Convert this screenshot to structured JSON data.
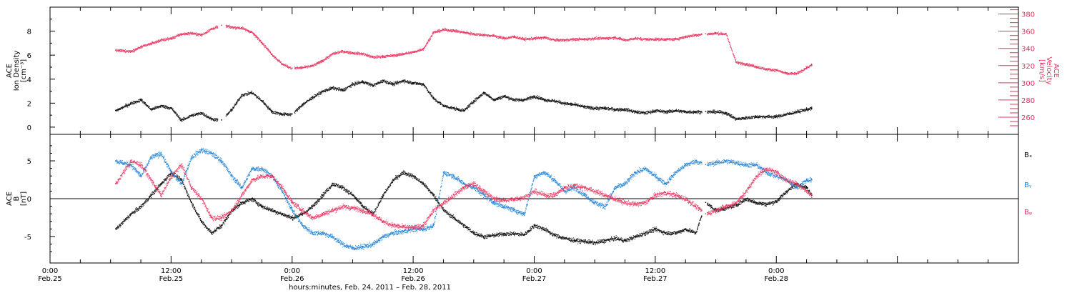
{
  "colors": {
    "density": "#000000",
    "velocity": "#e8315c",
    "bx": "#000000",
    "by": "#1a7fd6",
    "bz": "#e8315c",
    "axis": "#000000"
  },
  "chart_data": [
    {
      "panel": "top",
      "type": "scatter",
      "xlabel": "hours:minutes, Feb. 24, 2011 – Feb. 28, 2011",
      "xlim": [
        0,
        96
      ],
      "x_ticks": [
        {
          "value": 0,
          "time": "0:00",
          "date": "Feb.25"
        },
        {
          "value": 12,
          "time": "12:00",
          "date": "Feb.25"
        },
        {
          "value": 24,
          "time": "0:00",
          "date": "Feb.26"
        },
        {
          "value": 36,
          "time": "12:00",
          "date": "Feb.26"
        },
        {
          "value": 48,
          "time": "0:00",
          "date": "Feb.27"
        },
        {
          "value": 60,
          "time": "12:00",
          "date": "Feb.27"
        },
        {
          "value": 72,
          "time": "0:00",
          "date": "Feb.28"
        }
      ],
      "left_axis": {
        "label_lines": [
          "ACE",
          "Ion Density",
          "[cm⁻³]"
        ],
        "ylim": [
          -0.6,
          10
        ],
        "ticks": [
          0,
          2,
          4,
          6,
          8
        ]
      },
      "right_axis": {
        "label_lines": [
          "ACE",
          "Velocity",
          "[km/s]"
        ],
        "ylim": [
          240,
          388
        ],
        "ticks": [
          260,
          280,
          300,
          320,
          340,
          360,
          380
        ]
      },
      "series": [
        {
          "key": "density",
          "axis": "left",
          "x": [
            6.5,
            8,
            9,
            10,
            11,
            12,
            13,
            14,
            15,
            16,
            17,
            18,
            19,
            20,
            21,
            22,
            23,
            24,
            25,
            26,
            27,
            28,
            29,
            30,
            31,
            32,
            33,
            34,
            35,
            36,
            37,
            38,
            39,
            40,
            41,
            42,
            43,
            44,
            45,
            46,
            47,
            48,
            49,
            50,
            51,
            52,
            53,
            54,
            55,
            56,
            57,
            58,
            59,
            60,
            61,
            62,
            63,
            64,
            65,
            66,
            67,
            68,
            69,
            70,
            71,
            72,
            73,
            74,
            75,
            75.5
          ],
          "y": [
            1.4,
            2.0,
            2.3,
            1.5,
            1.8,
            1.6,
            0.6,
            1.0,
            1.2,
            0.7,
            0.6,
            1.5,
            2.7,
            2.9,
            2.2,
            1.3,
            1.1,
            1.1,
            1.9,
            2.5,
            3.0,
            3.3,
            3.1,
            3.6,
            3.8,
            3.5,
            3.9,
            3.6,
            3.9,
            3.7,
            3.6,
            2.4,
            1.8,
            1.6,
            1.4,
            2.2,
            2.9,
            2.3,
            2.6,
            2.3,
            2.3,
            2.6,
            2.3,
            2.2,
            2.0,
            1.9,
            1.7,
            1.6,
            1.6,
            1.5,
            1.5,
            1.3,
            1.2,
            1.4,
            1.3,
            1.4,
            1.3,
            1.3,
            1.3,
            1.3,
            1.2,
            0.7,
            0.8,
            0.9,
            0.9,
            0.9,
            1.1,
            1.3,
            1.5,
            1.6
          ]
        },
        {
          "key": "velocity",
          "axis": "right",
          "x": [
            6.5,
            8,
            9,
            10,
            11,
            12,
            13,
            14,
            15,
            16,
            17,
            18,
            19,
            20,
            21,
            22,
            23,
            24,
            25,
            26,
            27,
            28,
            29,
            30,
            31,
            32,
            33,
            34,
            35,
            36,
            37,
            38,
            39,
            40,
            41,
            42,
            43,
            44,
            45,
            46,
            47,
            48,
            49,
            50,
            51,
            52,
            53,
            54,
            55,
            56,
            57,
            58,
            59,
            60,
            61,
            62,
            63,
            64,
            65,
            66,
            67,
            68,
            69,
            70,
            71,
            72,
            73,
            74,
            75,
            75.5
          ],
          "y": [
            338,
            337,
            342,
            346,
            350,
            352,
            357,
            358,
            356,
            363,
            367,
            365,
            364,
            359,
            347,
            333,
            322,
            317,
            318,
            320,
            326,
            334,
            337,
            335,
            334,
            330,
            331,
            332,
            334,
            336,
            340,
            359,
            362,
            361,
            359,
            357,
            356,
            355,
            352,
            354,
            351,
            352,
            353,
            350,
            350,
            351,
            351,
            352,
            352,
            353,
            350,
            352,
            351,
            351,
            351,
            351,
            354,
            356,
            357,
            358,
            357,
            324,
            322,
            319,
            316,
            315,
            311,
            311,
            318,
            321
          ]
        }
      ],
      "gaps": [
        [
          16.6,
          17.4
        ],
        [
          23.9,
          24.2
        ],
        [
          64.6,
          65.1
        ]
      ]
    },
    {
      "panel": "bottom",
      "type": "scatter",
      "xlim": [
        0,
        96
      ],
      "left_axis": {
        "label_lines": [
          "ACE",
          "B",
          "[nT]"
        ],
        "ylim": [
          -8.5,
          8.5
        ],
        "ticks": [
          -5,
          0,
          5
        ]
      },
      "zero_line": true,
      "legend": [
        "Bₓ",
        "Bᵧ",
        "Bᵩ"
      ],
      "legend_placement": "right",
      "series": [
        {
          "key": "bx",
          "name": "Bₓ",
          "x": [
            6.5,
            8,
            9,
            10,
            11,
            12,
            13,
            14,
            15,
            16,
            17,
            18,
            19,
            20,
            21,
            22,
            23,
            24,
            25,
            26,
            27,
            28,
            29,
            30,
            31,
            32,
            33,
            34,
            35,
            36,
            37,
            38,
            39,
            40,
            41,
            42,
            43,
            44,
            45,
            46,
            47,
            48,
            49,
            50,
            51,
            52,
            53,
            54,
            55,
            56,
            57,
            58,
            59,
            60,
            61,
            62,
            63,
            64,
            65,
            66,
            67,
            68,
            69,
            70,
            71,
            72,
            73,
            74,
            75,
            75.5
          ],
          "y": [
            -4.0,
            -2.0,
            -1.0,
            0.5,
            2.0,
            3.5,
            2.5,
            -0.5,
            -3.0,
            -4.5,
            -3.5,
            -1.5,
            -0.5,
            0.0,
            -1.0,
            -1.5,
            -2.0,
            -2.5,
            -2.0,
            -1.0,
            0.5,
            2.0,
            1.5,
            0.5,
            -1.0,
            -2.0,
            0.5,
            2.5,
            3.5,
            3.0,
            2.0,
            0.5,
            -1.5,
            -2.5,
            -3.5,
            -4.5,
            -5.0,
            -4.8,
            -4.6,
            -4.6,
            -4.7,
            -3.5,
            -4.0,
            -4.8,
            -5.2,
            -5.5,
            -5.6,
            -5.8,
            -5.5,
            -5.2,
            -5.5,
            -5.0,
            -4.5,
            -4.0,
            -4.5,
            -4.5,
            -4.0,
            -4.5,
            -0.5,
            -1.5,
            -1.2,
            -0.8,
            0.0,
            -0.5,
            -0.7,
            -0.3,
            1.0,
            2.0,
            1.5,
            0.5
          ]
        },
        {
          "key": "by",
          "name": "Bᵧ",
          "x": [
            6.5,
            8,
            9,
            10,
            11,
            12,
            13,
            14,
            15,
            16,
            17,
            18,
            19,
            20,
            21,
            22,
            23,
            24,
            25,
            26,
            27,
            28,
            29,
            30,
            31,
            32,
            33,
            34,
            35,
            36,
            37,
            38,
            39,
            40,
            41,
            42,
            43,
            44,
            45,
            46,
            47,
            48,
            49,
            50,
            51,
            52,
            53,
            54,
            55,
            56,
            57,
            58,
            59,
            60,
            61,
            62,
            63,
            64,
            65,
            66,
            67,
            68,
            69,
            70,
            71,
            72,
            73,
            74,
            75,
            75.5
          ],
          "y": [
            5.0,
            4.5,
            3.0,
            5.5,
            6.0,
            3.5,
            2.0,
            5.5,
            6.5,
            6.0,
            5.0,
            3.0,
            1.5,
            4.0,
            4.0,
            3.0,
            1.0,
            -1.5,
            -3.5,
            -4.5,
            -4.5,
            -5.0,
            -6.0,
            -6.5,
            -6.3,
            -6.0,
            -5.0,
            -4.5,
            -4.3,
            -4.0,
            -4.0,
            -3.5,
            3.5,
            3.0,
            2.0,
            1.5,
            0.5,
            -0.5,
            -1.0,
            -1.5,
            -2.0,
            3.0,
            3.5,
            2.5,
            1.0,
            1.5,
            0.5,
            -0.5,
            -1.0,
            1.5,
            2.0,
            3.5,
            4.0,
            3.0,
            2.0,
            3.5,
            4.5,
            5.0,
            4.5,
            4.8,
            5.0,
            4.8,
            4.5,
            4.5,
            3.5,
            3.0,
            2.5,
            1.5,
            2.5,
            2.5
          ]
        },
        {
          "key": "bz",
          "name": "Bᵩ",
          "x": [
            6.5,
            8,
            9,
            10,
            11,
            12,
            13,
            14,
            15,
            16,
            17,
            18,
            19,
            20,
            21,
            22,
            23,
            24,
            25,
            26,
            27,
            28,
            29,
            30,
            31,
            32,
            33,
            34,
            35,
            36,
            37,
            38,
            39,
            40,
            41,
            42,
            43,
            44,
            45,
            46,
            47,
            48,
            49,
            50,
            51,
            52,
            53,
            54,
            55,
            56,
            57,
            58,
            59,
            60,
            61,
            62,
            63,
            64,
            65,
            66,
            67,
            68,
            69,
            70,
            71,
            72,
            73,
            74,
            75,
            75.5
          ],
          "y": [
            2.0,
            5.0,
            4.5,
            2.5,
            0.5,
            3.0,
            4.5,
            1.5,
            0.0,
            -2.5,
            -2.5,
            -1.5,
            0.5,
            2.5,
            3.0,
            3.0,
            1.5,
            -0.5,
            -1.5,
            -2.5,
            -2.0,
            -1.5,
            -1.0,
            -1.2,
            -1.5,
            -2.0,
            -3.0,
            -3.5,
            -3.7,
            -3.8,
            -3.5,
            -1.5,
            -0.5,
            0.5,
            1.5,
            2.0,
            1.0,
            0.0,
            -0.2,
            0.0,
            0.2,
            1.0,
            0.5,
            0.5,
            1.5,
            1.8,
            1.5,
            1.0,
            0.5,
            0.0,
            -0.5,
            -0.7,
            -0.5,
            0.5,
            0.8,
            0.5,
            0.0,
            -1.0,
            -2.0,
            -1.5,
            -1.0,
            -0.5,
            1.0,
            3.0,
            4.0,
            3.5,
            2.5,
            2.0,
            1.0,
            0.5
          ]
        }
      ],
      "gaps": [
        [
          64.6,
          65.1
        ]
      ]
    }
  ]
}
